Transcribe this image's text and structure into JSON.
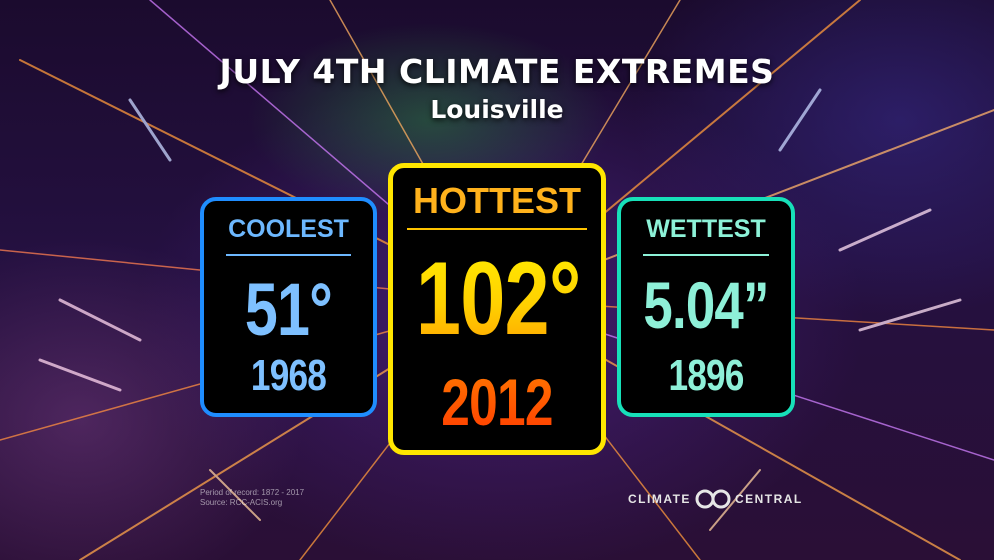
{
  "header": {
    "title": "JULY 4TH CLIMATE EXTREMES",
    "subtitle": "Louisville"
  },
  "cards": {
    "coolest": {
      "label": "COOLEST",
      "value": "51°",
      "year": "1968"
    },
    "hottest": {
      "label": "HOTTEST",
      "value": "102°",
      "year": "2012"
    },
    "wettest": {
      "label": "WETTEST",
      "value": "5.04”",
      "year": "1896"
    }
  },
  "footer": {
    "period": "Period of record: 1872 - 2017",
    "source": "Source: RCC-ACIS.org",
    "brand_left": "CLIMATE",
    "brand_right": "CENTRAL"
  },
  "icons": {
    "brand_logo": "climate-central-logo-icon"
  },
  "colors": {
    "coolest": "#1f8dff",
    "hottest": "#ffe600",
    "wettest": "#17e0b9"
  }
}
